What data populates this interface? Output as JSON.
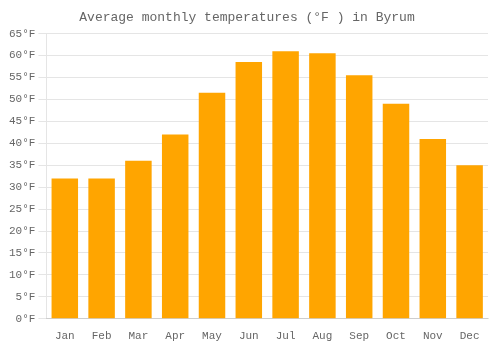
{
  "chart_data": {
    "type": "bar",
    "title": "Average monthly temperatures (°F ) in Byrum",
    "categories": [
      "Jan",
      "Feb",
      "Mar",
      "Apr",
      "May",
      "Jun",
      "Jul",
      "Aug",
      "Sep",
      "Oct",
      "Nov",
      "Dec"
    ],
    "values": [
      32,
      32,
      36,
      42,
      51.5,
      58.5,
      61,
      60.5,
      55.5,
      49,
      41,
      35
    ],
    "color": "#FFA500",
    "ylim": [
      0,
      65
    ],
    "yticks": [
      {
        "value": 0,
        "label": "0°F"
      },
      {
        "value": 5,
        "label": "5°F"
      },
      {
        "value": 10,
        "label": "10°F"
      },
      {
        "value": 15,
        "label": "15°F"
      },
      {
        "value": 20,
        "label": "20°F"
      },
      {
        "value": 25,
        "label": "25°F"
      },
      {
        "value": 30,
        "label": "30°F"
      },
      {
        "value": 35,
        "label": "35°F"
      },
      {
        "value": 40,
        "label": "40°F"
      },
      {
        "value": 45,
        "label": "45°F"
      },
      {
        "value": 50,
        "label": "50°F"
      },
      {
        "value": 55,
        "label": "55°F"
      },
      {
        "value": 60,
        "label": "60°F"
      },
      {
        "value": 65,
        "label": "65°F"
      }
    ],
    "grid": true
  }
}
